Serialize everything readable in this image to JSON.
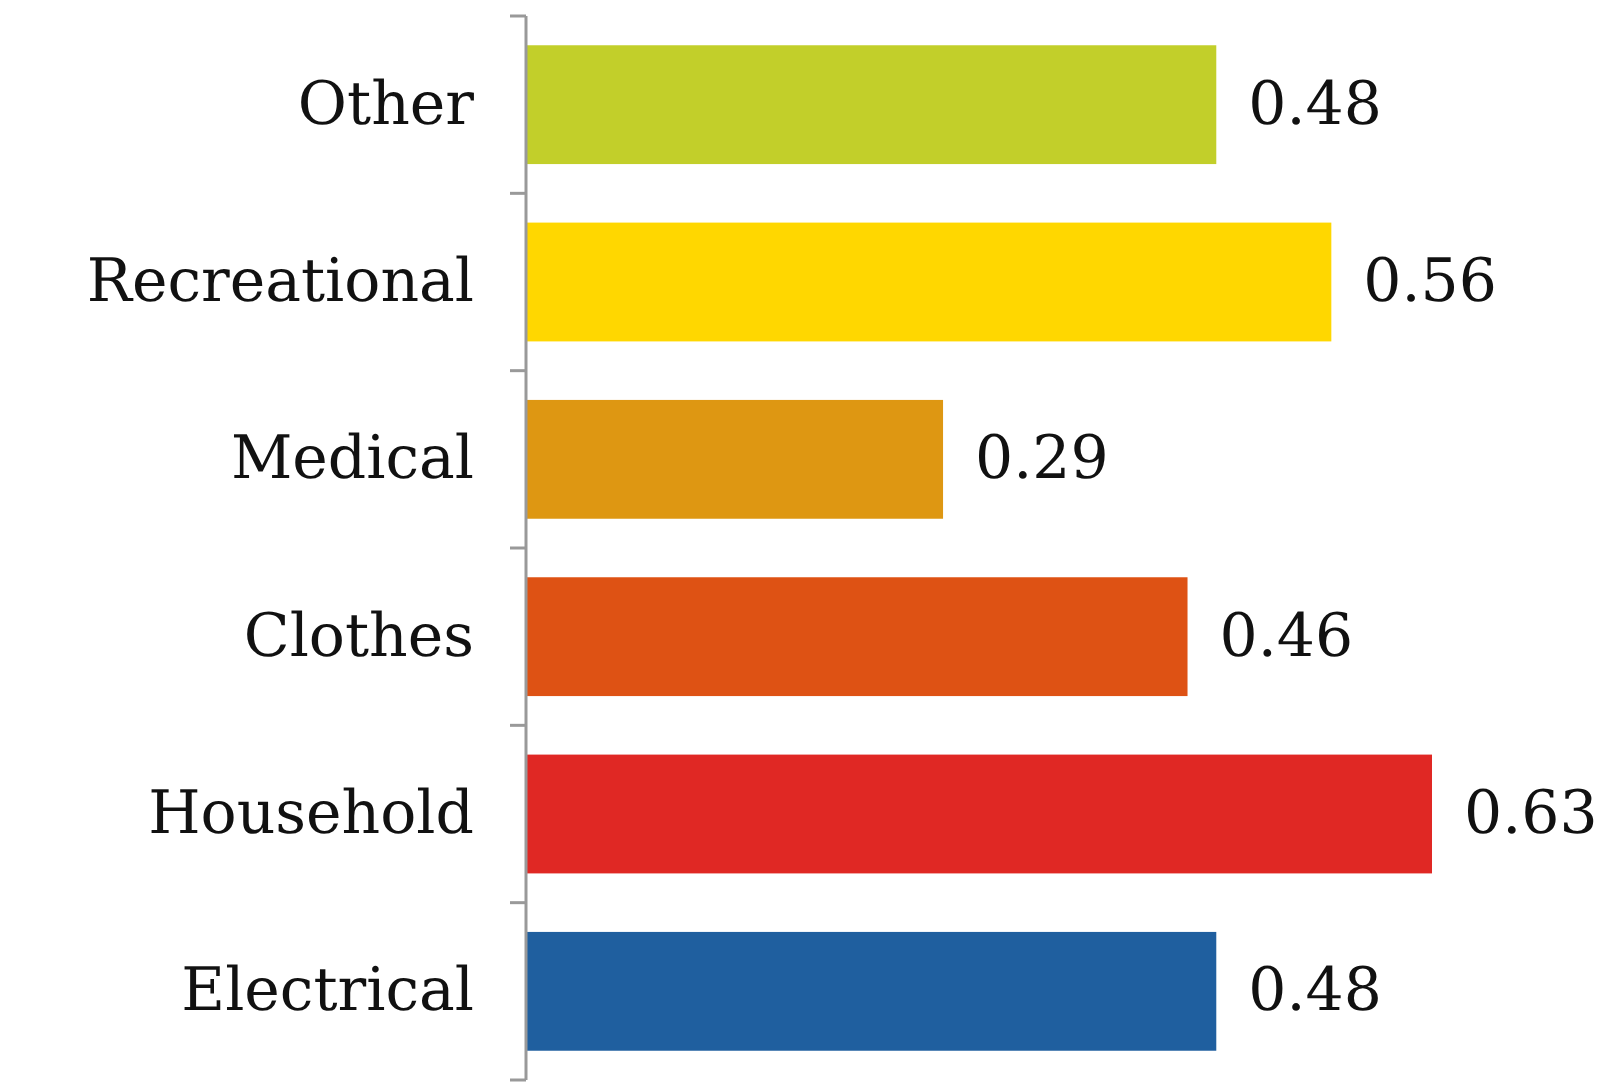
{
  "chart_data": {
    "type": "bar",
    "orientation": "horizontal",
    "categories": [
      "Other",
      "Recreational",
      "Medical",
      "Clothes",
      "Household",
      "Electrical"
    ],
    "values": [
      0.48,
      0.56,
      0.29,
      0.46,
      0.63,
      0.48
    ],
    "colors": [
      "#c2cf2a",
      "#ffd700",
      "#de9712",
      "#de5214",
      "#e02824",
      "#1f5f9f"
    ],
    "data_labels": true
  }
}
